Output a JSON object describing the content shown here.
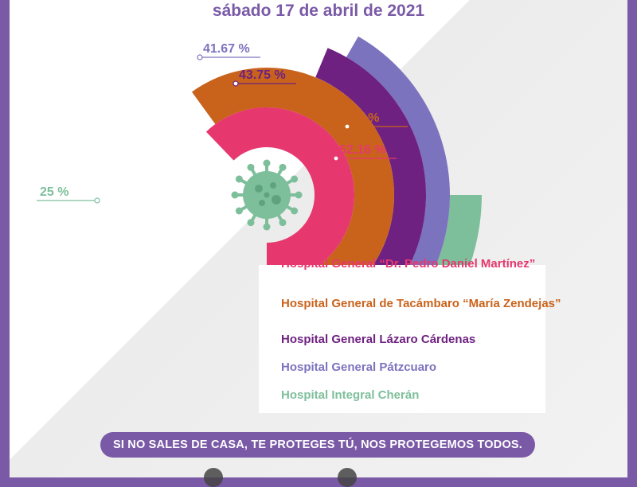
{
  "header": {
    "date": "sábado 17 de abril de 2021"
  },
  "footer": {
    "slogan": "SI NO SALES DE CASA, TE PROTEGES TÚ, NOS PROTEGEMOS TODOS."
  },
  "icons": {
    "center": "virus-icon",
    "footer": "seal-icon"
  },
  "colors": {
    "frame": "#7a5aa6",
    "pink": "#e6386f",
    "orange": "#c9631c",
    "purple": "#6e2180",
    "lavender": "#7c73bf",
    "green": "#7ebf9b"
  },
  "chart_data": {
    "type": "radial-bar",
    "series": [
      {
        "name": "Hospital General “Dr. Pedro Daniel Martínez”",
        "value": 62.16,
        "label": "62.16 %",
        "color": "#e6386f"
      },
      {
        "name": "Hospital General de Tacámbaro “María Zendejas”",
        "value": 60,
        "label": "60 %",
        "color": "#c9631c"
      },
      {
        "name": "Hospital General Lázaro Cárdenas",
        "value": 43.75,
        "label": "43.75 %",
        "color": "#6e2180"
      },
      {
        "name": "Hospital General Pátzcuaro",
        "value": 41.67,
        "label": "41.67 %",
        "color": "#7c73bf"
      },
      {
        "name": "Hospital Integral Cherán",
        "value": 25,
        "label": "25 %",
        "color": "#7ebf9b"
      }
    ]
  }
}
